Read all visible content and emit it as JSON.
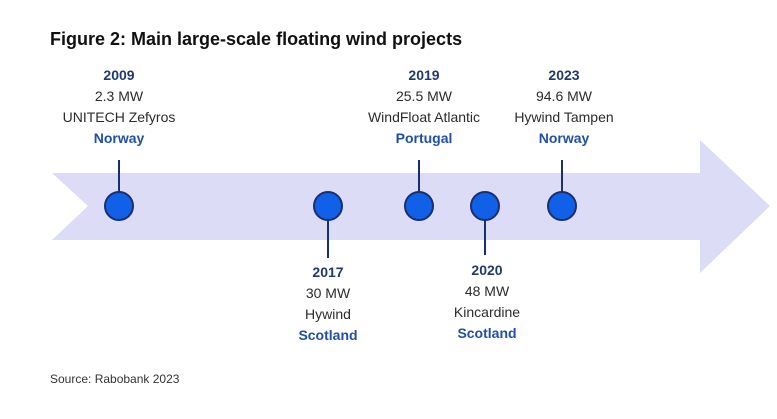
{
  "title": "Figure 2: Main large-scale floating wind projects",
  "source": "Source: Rabobank 2023",
  "colors": {
    "arrow": "#dcdcf7",
    "dot": "#1060e8",
    "dot_border": "#1a2f6e",
    "year": "#1f3a6e",
    "country": "#1f4fa8"
  },
  "projects": [
    {
      "year": "2009",
      "capacity": "2.3 MW",
      "name": "UNITECH Zefyros",
      "country": "Norway"
    },
    {
      "year": "2017",
      "capacity": "30 MW",
      "name": "Hywind",
      "country": "Scotland"
    },
    {
      "year": "2019",
      "capacity": "25.5 MW",
      "name": "WindFloat Atlantic",
      "country": "Portugal"
    },
    {
      "year": "2020",
      "capacity": "48 MW",
      "name": "Kincardine",
      "country": "Scotland"
    },
    {
      "year": "2023",
      "capacity": "94.6 MW",
      "name": "Hywind Tampen",
      "country": "Norway"
    }
  ]
}
